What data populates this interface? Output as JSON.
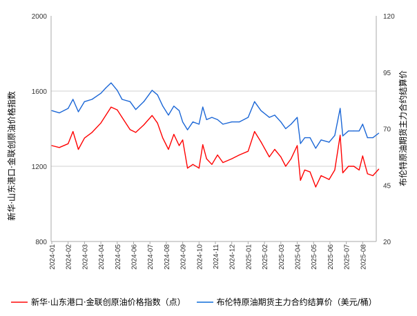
{
  "chart_data": {
    "type": "line",
    "left_axis": {
      "label": "新华·山东港口·金联创原油价格指数",
      "ylim": [
        800,
        2000
      ],
      "ticks": [
        800,
        1200,
        1600,
        2000
      ]
    },
    "right_axis": {
      "label": "布伦特原油期货主力合约结算价",
      "ylim": [
        20,
        120
      ],
      "ticks": [
        20,
        45,
        70,
        95,
        120
      ]
    },
    "x_ticks": [
      "2024-01",
      "2024-02",
      "2024-03",
      "2024-04",
      "2024-05",
      "2024-06",
      "2024-07",
      "2024-08",
      "2024-09",
      "2024-10",
      "2024-11",
      "2024-12",
      "2025-01",
      "2025-02",
      "2025-03",
      "2025-04",
      "2025-05",
      "2025-06",
      "2025-07",
      "2025-08"
    ],
    "grid": "horizontal at 1200 and 1600",
    "legend_placement": "bottom",
    "x": [
      "2024-01-01",
      "2024-01-15",
      "2024-02-01",
      "2024-02-10",
      "2024-02-20",
      "2024-03-01",
      "2024-03-15",
      "2024-04-01",
      "2024-04-10",
      "2024-04-20",
      "2024-05-01",
      "2024-05-10",
      "2024-05-25",
      "2024-06-05",
      "2024-06-20",
      "2024-07-05",
      "2024-07-15",
      "2024-07-25",
      "2024-08-05",
      "2024-08-15",
      "2024-08-25",
      "2024-09-01",
      "2024-09-10",
      "2024-09-20",
      "2024-10-01",
      "2024-10-08",
      "2024-10-15",
      "2024-10-25",
      "2024-11-05",
      "2024-11-15",
      "2024-12-01",
      "2024-12-15",
      "2025-01-01",
      "2025-01-13",
      "2025-01-25",
      "2025-02-10",
      "2025-02-20",
      "2025-03-01",
      "2025-03-10",
      "2025-03-20",
      "2025-04-01",
      "2025-04-07",
      "2025-04-15",
      "2025-04-25",
      "2025-05-05",
      "2025-05-15",
      "2025-05-30",
      "2025-06-10",
      "2025-06-20",
      "2025-06-25",
      "2025-07-05",
      "2025-07-15",
      "2025-07-25",
      "2025-08-01",
      "2025-08-10",
      "2025-08-20",
      "2025-08-31"
    ],
    "series": [
      {
        "name": "新华·山东港口·金联创原油价格指数（点）",
        "axis": "left",
        "color": "#ff0000",
        "values": [
          1310,
          1300,
          1320,
          1385,
          1290,
          1350,
          1380,
          1430,
          1470,
          1515,
          1500,
          1460,
          1395,
          1380,
          1420,
          1470,
          1430,
          1350,
          1290,
          1370,
          1310,
          1340,
          1190,
          1210,
          1190,
          1315,
          1240,
          1210,
          1260,
          1220,
          1240,
          1260,
          1280,
          1385,
          1330,
          1250,
          1290,
          1250,
          1200,
          1240,
          1310,
          1125,
          1180,
          1170,
          1090,
          1150,
          1130,
          1180,
          1365,
          1165,
          1200,
          1200,
          1180,
          1255,
          1160,
          1150,
          1185
        ]
      },
      {
        "name": "布伦特原油期货主力合约结算价（美元/桶）",
        "axis": "right",
        "color": "#1a66d6",
        "values": [
          78,
          77,
          79,
          83,
          77.5,
          82,
          83,
          85.7,
          88,
          90.3,
          87,
          83,
          82,
          78.5,
          82,
          87,
          85,
          80,
          76,
          80,
          78,
          73,
          69.5,
          73,
          72,
          79.6,
          74,
          75,
          74,
          72,
          73,
          73,
          75,
          82,
          78,
          75,
          76,
          73,
          70,
          72,
          75,
          63.4,
          66,
          66,
          61.3,
          65,
          64,
          67,
          79,
          66.8,
          69,
          69,
          69,
          72,
          66,
          66,
          68
        ]
      }
    ]
  }
}
